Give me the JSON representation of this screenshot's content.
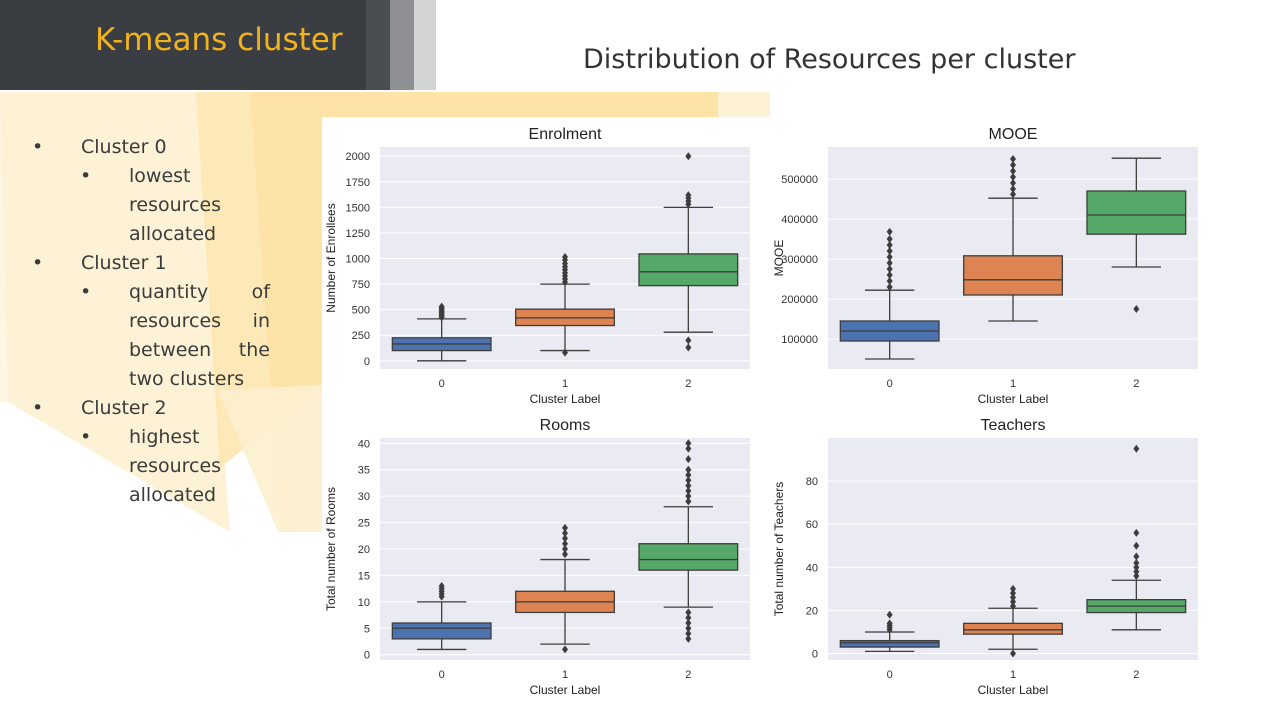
{
  "slide": {
    "title": "K-means cluster",
    "heading": "Distribution of Resources per cluster"
  },
  "bullets": [
    {
      "label": "Cluster 0",
      "sub": [
        "lowest resources allocated"
      ]
    },
    {
      "label": "Cluster 1",
      "sub": [
        "quantity of resources in between the two clusters"
      ]
    },
    {
      "label": "Cluster 2",
      "sub": [
        "highest resources allocated"
      ]
    }
  ],
  "colors": {
    "title_bar": "#3a3d42",
    "title_text": "#f2b21b",
    "cluster_0": "#4c72b0",
    "cluster_1": "#dd8452",
    "cluster_2": "#55a868",
    "plot_bg": "#eaeaf2"
  },
  "chart_data": [
    {
      "type": "box",
      "title": "Enrolment",
      "xlabel": "Cluster Label",
      "ylabel": "Number of Enrollees",
      "categories": [
        "0",
        "1",
        "2"
      ],
      "ylim": [
        -80,
        2090
      ],
      "yticks": [
        0,
        250,
        500,
        750,
        1000,
        1250,
        1500,
        1750,
        2000
      ],
      "boxes": [
        {
          "low": 0,
          "q1": 100,
          "median": 165,
          "q3": 225,
          "high": 410,
          "outliers": [
            425,
            440,
            455,
            470,
            485,
            500,
            515,
            530
          ]
        },
        {
          "low": 100,
          "q1": 345,
          "median": 420,
          "q3": 505,
          "high": 750,
          "outliers": [
            80,
            770,
            800,
            830,
            860,
            890,
            920,
            950,
            985,
            1015
          ]
        },
        {
          "low": 280,
          "q1": 735,
          "median": 870,
          "q3": 1045,
          "high": 1500,
          "outliers": [
            130,
            200,
            1530,
            1560,
            1590,
            1620,
            2000
          ]
        }
      ]
    },
    {
      "type": "box",
      "title": "MOOE",
      "xlabel": "Cluster Label",
      "ylabel": "MOOE",
      "categories": [
        "0",
        "1",
        "2"
      ],
      "ylim": [
        25000,
        580000
      ],
      "yticks": [
        100000,
        200000,
        300000,
        400000,
        500000
      ],
      "boxes": [
        {
          "low": 50000,
          "q1": 95000,
          "median": 120000,
          "q3": 145000,
          "high": 222000,
          "outliers": [
            230000,
            245000,
            260000,
            275000,
            290000,
            305000,
            320000,
            335000,
            350000,
            368000
          ]
        },
        {
          "low": 145000,
          "q1": 210000,
          "median": 248000,
          "q3": 308000,
          "high": 452000,
          "outliers": [
            462000,
            475000,
            490000,
            505000,
            520000,
            535000,
            550000
          ]
        },
        {
          "low": 280000,
          "q1": 362000,
          "median": 410000,
          "q3": 470000,
          "high": 552000,
          "outliers": [
            175000
          ]
        }
      ]
    },
    {
      "type": "box",
      "title": "Rooms",
      "xlabel": "Cluster Label",
      "ylabel": "Total number of Rooms",
      "categories": [
        "0",
        "1",
        "2"
      ],
      "ylim": [
        -1,
        41
      ],
      "yticks": [
        0,
        5,
        10,
        15,
        20,
        25,
        30,
        35,
        40
      ],
      "boxes": [
        {
          "low": 1,
          "q1": 3,
          "median": 5,
          "q3": 6,
          "high": 10,
          "outliers": [
            11,
            11.5,
            12,
            12.5,
            13
          ]
        },
        {
          "low": 2,
          "q1": 8,
          "median": 10,
          "q3": 12,
          "high": 18,
          "outliers": [
            1,
            19,
            20,
            21,
            22,
            23,
            24
          ]
        },
        {
          "low": 9,
          "q1": 16,
          "median": 18,
          "q3": 21,
          "high": 28,
          "outliers": [
            3,
            4,
            5,
            6,
            7,
            8,
            29,
            30,
            31,
            32,
            33,
            34,
            35,
            37,
            39,
            40
          ]
        }
      ]
    },
    {
      "type": "box",
      "title": "Teachers",
      "xlabel": "Cluster Label",
      "ylabel": "Total number of Teachers",
      "categories": [
        "0",
        "1",
        "2"
      ],
      "ylim": [
        -3,
        100
      ],
      "yticks": [
        0,
        20,
        40,
        60,
        80
      ],
      "boxes": [
        {
          "low": 1,
          "q1": 3,
          "median": 5,
          "q3": 6,
          "high": 10,
          "outliers": [
            11,
            12,
            13,
            14,
            18
          ]
        },
        {
          "low": 2,
          "q1": 9,
          "median": 11,
          "q3": 14,
          "high": 21,
          "outliers": [
            0,
            22,
            24,
            26,
            28,
            30
          ]
        },
        {
          "low": 11,
          "q1": 19,
          "median": 22,
          "q3": 25,
          "high": 34,
          "outliers": [
            36,
            38,
            40,
            42,
            45,
            50,
            56,
            95
          ]
        }
      ]
    }
  ]
}
